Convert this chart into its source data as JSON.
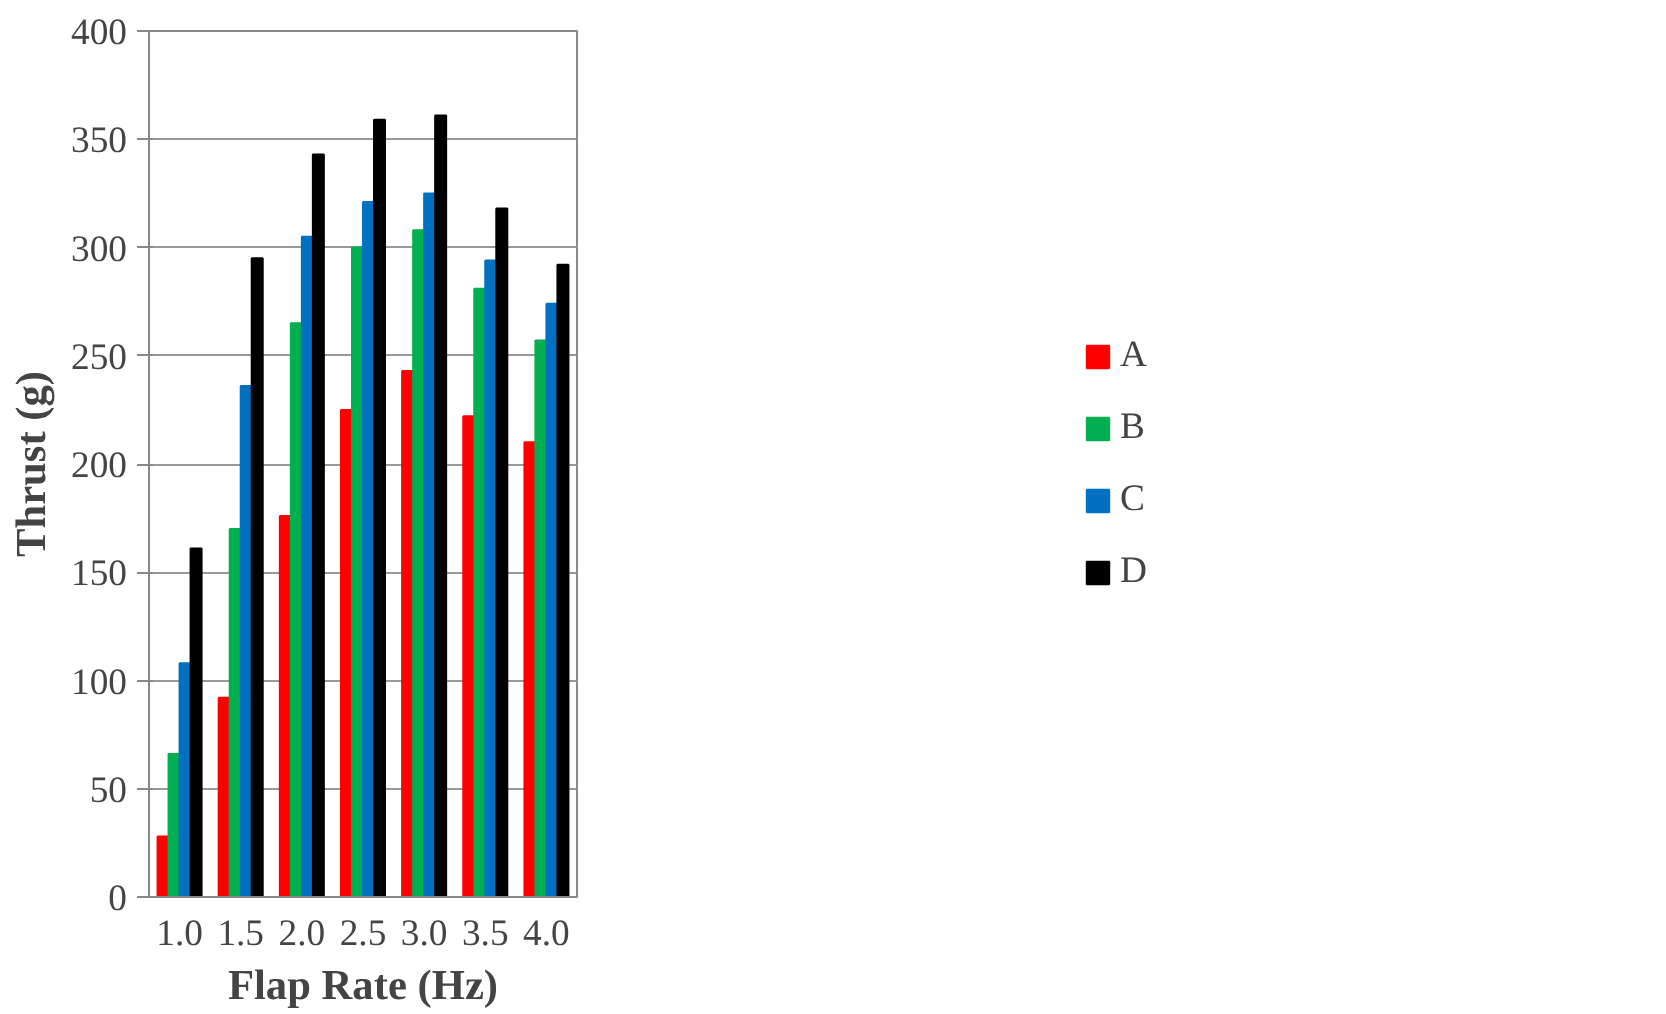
{
  "chart_data": {
    "type": "bar",
    "xlabel": "Flap Rate (Hz)",
    "ylabel": "Thrust (g)",
    "categories": [
      "1.0",
      "1.5",
      "2.0",
      "2.5",
      "3.0",
      "3.5",
      "4.0"
    ],
    "series": [
      {
        "name": "A",
        "color": "#ff0000",
        "values": [
          28,
          92,
          176,
          225,
          243,
          222,
          210
        ]
      },
      {
        "name": "B",
        "color": "#00b050",
        "values": [
          66,
          170,
          265,
          300,
          308,
          281,
          257
        ]
      },
      {
        "name": "C",
        "color": "#0070c0",
        "values": [
          108,
          236,
          305,
          321,
          325,
          294,
          274
        ]
      },
      {
        "name": "D",
        "color": "#000000",
        "values": [
          161,
          295,
          343,
          359,
          361,
          318,
          292
        ]
      }
    ],
    "ylim": [
      0,
      400
    ],
    "yticks": [
      0,
      50,
      100,
      150,
      200,
      250,
      300,
      350,
      400
    ],
    "grid": "y",
    "legend": "right"
  }
}
